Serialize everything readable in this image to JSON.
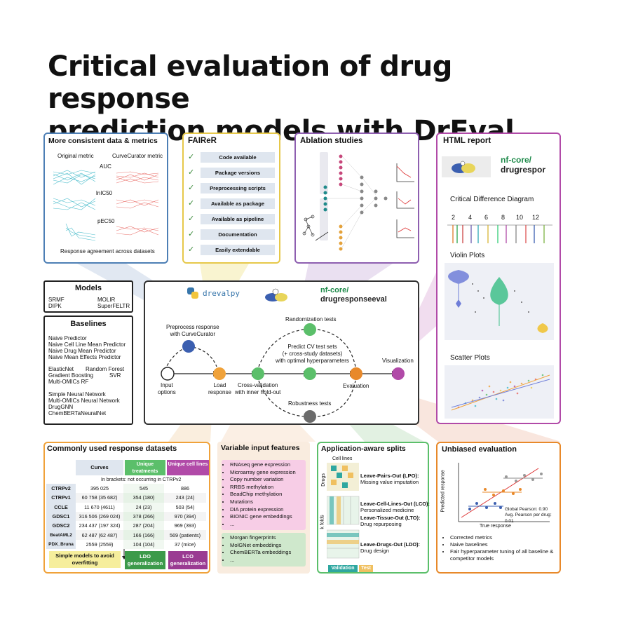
{
  "title_line1": "Critical evaluation of drug response",
  "title_line2": "prediction models with DrEval",
  "consistent": {
    "title": "More consistent data & metrics",
    "col_left": "Original metric",
    "col_right": "CurveCurator metric",
    "metrics": [
      "AUC",
      "lnIC50",
      "pEC50"
    ],
    "footer": "Response agreement across datasets",
    "colors": {
      "left": "#3fb8c8",
      "right": "#e8655f"
    }
  },
  "fairer": {
    "title": "FAIReR",
    "items": [
      "Code available",
      "Package versions",
      "Preprocessing scripts",
      "Available as package",
      "Available as pipeline",
      "Documentation",
      "Easily extendable"
    ]
  },
  "ablation": {
    "title": "Ablation studies"
  },
  "html_report": {
    "title": "HTML report",
    "logo_text_1": "nf-core/",
    "logo_text_2": "drugrespor",
    "cd_title": "Critical Difference Diagram",
    "cd_ticks": [
      "2",
      "4",
      "6",
      "8",
      "10",
      "12"
    ],
    "violin_title": "Violin Plots",
    "scatter_title": "Scatter Plots"
  },
  "models": {
    "title": "Models",
    "left": [
      "SRMF",
      "DIPK"
    ],
    "right": [
      "MOLIR",
      "SuperFELTR"
    ]
  },
  "baselines": {
    "title": "Baselines",
    "group1": [
      "Naive Predictor",
      "Naive Cell Line Mean Predictor",
      "Naive Drug Mean Predictor",
      "Naive Mean Effects Predictor"
    ],
    "group2_left": [
      "ElasticNet",
      "Gradient Boosting",
      "Multi-OMICs RF"
    ],
    "group2_right": [
      "Random Forest",
      "SVR"
    ],
    "group3": [
      "Simple Neural Network",
      "Multi-OMICs Neural Network",
      "DrugGNN",
      "ChemBERTaNeuralNet"
    ]
  },
  "workflow": {
    "logo_drevalpy": "drevalpy",
    "logo_nfcore_1": "nf-core/",
    "logo_nfcore_2": "drugresponseeval",
    "preprocess": "Preprocess response\nwith CurveCurator",
    "input": "Input\noptions",
    "load": "Load\nresponse",
    "cv": "Cross-validation\nwith inner hold-out",
    "randomization": "Randomization tests",
    "predict": "Predict CV test sets\n(+ cross-study datasets)\nwith optimal hyperparameters",
    "robustness": "Robustness tests",
    "evaluation": "Evaluation",
    "visualization": "Visualization",
    "colors": {
      "orange": "#f0a23a",
      "green": "#5bbf6a",
      "grey": "#6b6b6b",
      "purple": "#b14aa8"
    }
  },
  "datasets": {
    "title": "Commonly used response datasets",
    "headers": [
      "Curves",
      "Unique treatments",
      "Unique cell lines"
    ],
    "note": "In brackets: not occurring in CTRPv2",
    "rows": [
      {
        "name": "CTRPv2",
        "curves": "395 025",
        "treat": "545",
        "cells": "886"
      },
      {
        "name": "CTRPv1",
        "curves": "60 758 (35 682)",
        "treat": "354 (180)",
        "cells": "243 (24)"
      },
      {
        "name": "CCLE",
        "curves": "11 670 (4611)",
        "treat": "24 (23)",
        "cells": "503 (54)"
      },
      {
        "name": "GDSC1",
        "curves": "316 506 (269 024)",
        "treat": "378 (266)",
        "cells": "970 (394)"
      },
      {
        "name": "GDSC2",
        "curves": "234 437 (197 324)",
        "treat": "287 (204)",
        "cells": "969 (393)"
      },
      {
        "name": "BeatAML2",
        "curves": "62 487 (62 487)",
        "treat": "166 (166)",
        "cells": "569 (patients)"
      },
      {
        "name": "PDX_Bruna",
        "curves": "2559 (2559)",
        "treat": "104 (104)",
        "cells": "37 (mice)"
      }
    ],
    "simple_models": "Simple models to avoid overfitting",
    "ldo": "LDO generalization",
    "lco": "LCO generalization"
  },
  "features": {
    "title": "Variable input features",
    "cell": [
      "RNAseq gene expression",
      "Microarray gene expression",
      "Copy number variation",
      "RRBS methylation",
      "BeadChip methylation",
      "Mutations",
      "DIA protein expression",
      "BIONIC gene embeddings",
      "..."
    ],
    "drug": [
      "Morgan fingerprints",
      "MolGNet embeddings",
      "ChemBERTa embeddings",
      "..."
    ]
  },
  "splits": {
    "title": "Application-aware splits",
    "cell_lines": "Cell lines",
    "drugs": "Drugs",
    "kfolds": "k folds",
    "lpo": "Leave-Pairs-Out (LPO):",
    "lpo_desc": "Missing value imputation",
    "lco": "Leave-Cell-Lines-Out (LCO):",
    "lco_desc": "Personalized medicine",
    "lto": "Leave-Tissue-Out (LTO):",
    "lto_desc": "Drug repurposing",
    "ldo": "Leave-Drugs-Out (LDO):",
    "ldo_desc": "Drug design",
    "validation": "Validation",
    "test": "Test"
  },
  "unbiased": {
    "title": "Unbiased evaluation",
    "ylabel": "Predicted response",
    "xlabel": "True response",
    "global_label": "Global Pearson:",
    "global_val": "0.90",
    "avg_label": "Avg. Pearson per drug:",
    "avg_val": "0.01",
    "bullets": [
      "Corrected metrics",
      "Naive baselines",
      "Fair hyperparameter tuning of all baseline & competitor models"
    ]
  }
}
